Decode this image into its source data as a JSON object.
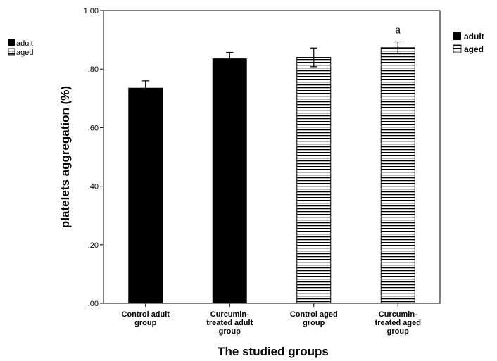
{
  "chart_data": {
    "type": "bar",
    "xlabel": "The studied groups",
    "ylabel": "platelets aggregation (%)",
    "ylim": [
      0,
      1.0
    ],
    "y_ticks": [
      ".00",
      ".20",
      ".40",
      ".60",
      ".80",
      "1.00"
    ],
    "categories": [
      [
        "Control adult",
        "group"
      ],
      [
        "Curcumin-",
        "treated adult",
        "group"
      ],
      [
        "Control aged",
        "group"
      ],
      [
        "Curcumin-",
        "treated aged",
        "group"
      ]
    ],
    "bars": [
      {
        "series": "adult",
        "value": 0.735,
        "error": 0.025
      },
      {
        "series": "adult",
        "value": 0.835,
        "error": 0.022
      },
      {
        "series": "aged",
        "value": 0.84,
        "error": 0.032
      },
      {
        "series": "aged",
        "value": 0.873,
        "error": 0.02,
        "annotation": "a"
      }
    ],
    "legend": [
      {
        "name": "adult",
        "color": "#000000",
        "pattern": "solid"
      },
      {
        "name": "aged",
        "color": "#000000",
        "pattern": "horizontal-stripes"
      }
    ],
    "grid": false,
    "legend_placement": "left and right, top"
  }
}
